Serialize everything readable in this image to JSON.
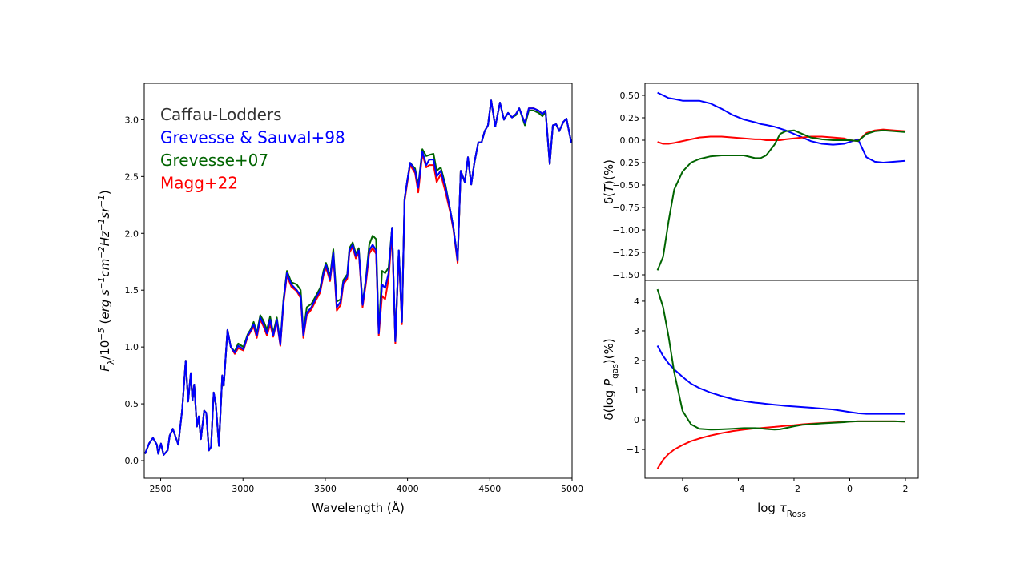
{
  "chart_data": [
    {
      "type": "line",
      "xlabel": "Wavelength (Å)",
      "ylabel_parts": [
        {
          "t": "F",
          "style": "italic"
        },
        {
          "t": "λ",
          "style": "sub"
        },
        {
          "t": "/10",
          "style": "normal"
        },
        {
          "t": "−5",
          "style": "sup"
        },
        {
          "t": "  (",
          "style": "normal"
        },
        {
          "t": "erg s",
          "style": "italic"
        },
        {
          "t": "−1",
          "style": "sup"
        },
        {
          "t": "cm",
          "style": "italic"
        },
        {
          "t": "−2",
          "style": "sup"
        },
        {
          "t": "Hz",
          "style": "italic"
        },
        {
          "t": "−1",
          "style": "sup"
        },
        {
          "t": "sr",
          "style": "italic"
        },
        {
          "t": "−1",
          "style": "sup"
        },
        {
          "t": ")",
          "style": "normal"
        }
      ],
      "xlim": [
        2400,
        5000
      ],
      "ylim": [
        -0.155,
        3.32
      ],
      "xticks": [
        2500,
        3000,
        3500,
        4000,
        4500,
        5000
      ],
      "yticks": [
        "0.0",
        "0.5",
        "1.0",
        "1.5",
        "2.0",
        "2.5",
        "3.0"
      ],
      "grid": false,
      "legend_position": "top-left",
      "x": [
        2405,
        2429,
        2453,
        2477,
        2485,
        2502,
        2518,
        2542,
        2555,
        2574,
        2607,
        2631,
        2652,
        2667,
        2683,
        2693,
        2704,
        2720,
        2731,
        2744,
        2764,
        2777,
        2793,
        2806,
        2822,
        2835,
        2854,
        2874,
        2883,
        2906,
        2926,
        2950,
        2971,
        3003,
        3028,
        3049,
        3065,
        3084,
        3105,
        3125,
        3146,
        3165,
        3184,
        3206,
        3227,
        3246,
        3267,
        3294,
        3327,
        3351,
        3367,
        3388,
        3416,
        3443,
        3469,
        3489,
        3505,
        3529,
        3549,
        3570,
        3594,
        3610,
        3634,
        3647,
        3667,
        3686,
        3704,
        3727,
        3748,
        3767,
        3788,
        3809,
        3825,
        3845,
        3864,
        3885,
        3906,
        3926,
        3947,
        3966,
        3982,
        3997,
        4016,
        4046,
        4065,
        4090,
        4114,
        4133,
        4158,
        4177,
        4202,
        4231,
        4260,
        4279,
        4304,
        4323,
        4348,
        4367,
        4387,
        4406,
        4430,
        4450,
        4469,
        4489,
        4508,
        4533,
        4562,
        4586,
        4611,
        4635,
        4659,
        4679,
        4713,
        4737,
        4766,
        4796,
        4820,
        4839,
        4864,
        4883,
        4903,
        4922,
        4947,
        4966,
        4995
      ],
      "series": [
        {
          "name": "Caffau-Lodders",
          "color": "#333333",
          "values": [
            0.06,
            0.15,
            0.2,
            0.14,
            0.06,
            0.15,
            0.05,
            0.09,
            0.22,
            0.28,
            0.14,
            0.45,
            0.88,
            0.52,
            0.77,
            0.53,
            0.67,
            0.3,
            0.39,
            0.19,
            0.44,
            0.42,
            0.09,
            0.12,
            0.6,
            0.5,
            0.13,
            0.75,
            0.66,
            1.15,
            1.0,
            0.95,
            1.01,
            0.98,
            1.1,
            1.15,
            1.2,
            1.1,
            1.26,
            1.2,
            1.12,
            1.24,
            1.1,
            1.24,
            1.02,
            1.4,
            1.65,
            1.55,
            1.5,
            1.45,
            1.1,
            1.3,
            1.35,
            1.43,
            1.5,
            1.65,
            1.72,
            1.6,
            1.83,
            1.35,
            1.4,
            1.57,
            1.62,
            1.85,
            1.9,
            1.8,
            1.85,
            1.37,
            1.6,
            1.85,
            1.9,
            1.85,
            1.12,
            1.55,
            1.52,
            1.65,
            2.05,
            1.05,
            1.85,
            1.22,
            2.3,
            2.45,
            2.62,
            2.55,
            2.4,
            2.72,
            2.6,
            2.65,
            2.65,
            2.5,
            2.55,
            2.4,
            2.2,
            2.05,
            1.76,
            2.55,
            2.45,
            2.67,
            2.43,
            2.62,
            2.8,
            2.8,
            2.9,
            2.95,
            3.17,
            2.94,
            3.15,
            3.0,
            3.06,
            3.02,
            3.05,
            3.1,
            2.97,
            3.1,
            3.1,
            3.08,
            3.05,
            3.08,
            2.61,
            2.95,
            2.96,
            2.9,
            2.98,
            3.01,
            2.8
          ]
        },
        {
          "name": "Magg+22",
          "color": "#ff0000",
          "values": [
            0.06,
            0.15,
            0.2,
            0.14,
            0.06,
            0.15,
            0.05,
            0.09,
            0.22,
            0.28,
            0.14,
            0.45,
            0.88,
            0.52,
            0.77,
            0.53,
            0.67,
            0.3,
            0.39,
            0.19,
            0.44,
            0.42,
            0.09,
            0.12,
            0.6,
            0.5,
            0.13,
            0.75,
            0.66,
            1.15,
            1.0,
            0.94,
            0.99,
            0.97,
            1.09,
            1.14,
            1.18,
            1.08,
            1.24,
            1.18,
            1.1,
            1.2,
            1.09,
            1.22,
            1.01,
            1.38,
            1.63,
            1.53,
            1.49,
            1.43,
            1.08,
            1.28,
            1.33,
            1.41,
            1.48,
            1.63,
            1.7,
            1.58,
            1.81,
            1.32,
            1.37,
            1.55,
            1.6,
            1.83,
            1.88,
            1.78,
            1.83,
            1.35,
            1.57,
            1.82,
            1.87,
            1.82,
            1.1,
            1.45,
            1.42,
            1.6,
            2.0,
            1.03,
            1.82,
            1.2,
            2.28,
            2.43,
            2.6,
            2.53,
            2.36,
            2.7,
            2.58,
            2.6,
            2.6,
            2.45,
            2.52,
            2.36,
            2.18,
            2.03,
            1.74,
            2.55,
            2.45,
            2.67,
            2.43,
            2.62,
            2.8,
            2.8,
            2.9,
            2.95,
            3.17,
            2.94,
            3.15,
            3.0,
            3.06,
            3.02,
            3.05,
            3.1,
            2.97,
            3.1,
            3.1,
            3.08,
            3.05,
            3.08,
            2.61,
            2.95,
            2.96,
            2.9,
            2.98,
            3.01,
            2.8
          ]
        },
        {
          "name": "Grevesse+07",
          "color": "#006400",
          "values": [
            0.06,
            0.15,
            0.2,
            0.14,
            0.06,
            0.15,
            0.05,
            0.09,
            0.22,
            0.28,
            0.14,
            0.45,
            0.88,
            0.52,
            0.77,
            0.53,
            0.67,
            0.3,
            0.39,
            0.19,
            0.44,
            0.42,
            0.09,
            0.12,
            0.6,
            0.5,
            0.13,
            0.75,
            0.66,
            1.15,
            1.0,
            0.96,
            1.03,
            1.0,
            1.11,
            1.16,
            1.22,
            1.12,
            1.28,
            1.23,
            1.15,
            1.27,
            1.12,
            1.26,
            1.04,
            1.42,
            1.67,
            1.57,
            1.55,
            1.5,
            1.13,
            1.35,
            1.38,
            1.45,
            1.52,
            1.67,
            1.74,
            1.62,
            1.86,
            1.4,
            1.42,
            1.59,
            1.64,
            1.87,
            1.92,
            1.82,
            1.87,
            1.38,
            1.62,
            1.9,
            1.98,
            1.95,
            1.13,
            1.67,
            1.65,
            1.7,
            2.05,
            1.05,
            1.85,
            1.22,
            2.3,
            2.45,
            2.62,
            2.57,
            2.42,
            2.74,
            2.68,
            2.69,
            2.7,
            2.55,
            2.58,
            2.42,
            2.2,
            2.05,
            1.76,
            2.55,
            2.45,
            2.67,
            2.43,
            2.62,
            2.8,
            2.8,
            2.9,
            2.95,
            3.17,
            2.94,
            3.15,
            3.0,
            3.06,
            3.02,
            3.04,
            3.1,
            2.95,
            3.08,
            3.08,
            3.06,
            3.03,
            3.07,
            2.61,
            2.95,
            2.96,
            2.9,
            2.98,
            3.01,
            2.8
          ]
        },
        {
          "name": "Grevesse & Sauval+98",
          "color": "#0000ff",
          "values": [
            0.06,
            0.15,
            0.2,
            0.14,
            0.06,
            0.15,
            0.05,
            0.09,
            0.22,
            0.28,
            0.14,
            0.45,
            0.88,
            0.52,
            0.77,
            0.53,
            0.67,
            0.3,
            0.39,
            0.19,
            0.44,
            0.42,
            0.09,
            0.12,
            0.6,
            0.5,
            0.13,
            0.75,
            0.66,
            1.15,
            1.0,
            0.95,
            1.01,
            0.98,
            1.1,
            1.15,
            1.2,
            1.1,
            1.26,
            1.2,
            1.12,
            1.24,
            1.1,
            1.24,
            1.02,
            1.4,
            1.65,
            1.55,
            1.5,
            1.45,
            1.1,
            1.3,
            1.35,
            1.43,
            1.5,
            1.65,
            1.72,
            1.6,
            1.83,
            1.35,
            1.4,
            1.57,
            1.62,
            1.85,
            1.9,
            1.8,
            1.85,
            1.37,
            1.6,
            1.85,
            1.9,
            1.85,
            1.12,
            1.55,
            1.52,
            1.65,
            2.05,
            1.05,
            1.85,
            1.22,
            2.3,
            2.45,
            2.62,
            2.55,
            2.4,
            2.72,
            2.6,
            2.65,
            2.65,
            2.5,
            2.55,
            2.4,
            2.2,
            2.05,
            1.76,
            2.55,
            2.45,
            2.67,
            2.43,
            2.62,
            2.8,
            2.8,
            2.9,
            2.95,
            3.17,
            2.94,
            3.15,
            3.0,
            3.06,
            3.02,
            3.05,
            3.1,
            2.97,
            3.1,
            3.1,
            3.08,
            3.05,
            3.08,
            2.61,
            2.95,
            2.96,
            2.9,
            2.98,
            3.01,
            2.8
          ]
        }
      ],
      "legend": [
        {
          "label": "Caffau-Lodders",
          "color": "#333333"
        },
        {
          "label": "Grevesse & Sauval+98",
          "color": "#0000ff"
        },
        {
          "label": "Grevesse+07",
          "color": "#006400"
        },
        {
          "label": "Magg+22",
          "color": "#ff0000"
        }
      ]
    },
    {
      "type": "line",
      "ylabel_parts": [
        {
          "t": "δ(",
          "style": "normal"
        },
        {
          "t": "T",
          "style": "italic"
        },
        {
          "t": ")(%)",
          "style": "normal"
        }
      ],
      "xlim": [
        -7.35,
        2.46
      ],
      "ylim": [
        -1.5625,
        0.634
      ],
      "yticks": [
        "0.50",
        "0.25",
        "0.00",
        "−0.25",
        "−0.50",
        "−0.75",
        "−1.00",
        "−1.25",
        "−1.50"
      ],
      "grid": false,
      "x": [
        -6.9,
        -6.7,
        -6.5,
        -6.3,
        -6.0,
        -5.7,
        -5.4,
        -5.0,
        -4.6,
        -4.2,
        -3.8,
        -3.4,
        -3.2,
        -3.0,
        -2.7,
        -2.5,
        -2.3,
        -2.0,
        -1.7,
        -1.4,
        -1.0,
        -0.6,
        -0.2,
        0.0,
        0.3,
        0.6,
        0.9,
        1.2,
        1.6,
        2.0
      ],
      "series": [
        {
          "color": "#0000ff",
          "values": [
            0.53,
            0.5,
            0.47,
            0.46,
            0.44,
            0.44,
            0.44,
            0.41,
            0.35,
            0.28,
            0.23,
            0.2,
            0.18,
            0.17,
            0.15,
            0.13,
            0.11,
            0.07,
            0.03,
            -0.01,
            -0.04,
            -0.05,
            -0.04,
            -0.02,
            0.01,
            -0.19,
            -0.24,
            -0.25,
            -0.24,
            -0.23
          ]
        },
        {
          "color": "#ff0000",
          "values": [
            -0.02,
            -0.04,
            -0.04,
            -0.03,
            -0.01,
            0.01,
            0.03,
            0.04,
            0.04,
            0.03,
            0.02,
            0.01,
            0.01,
            0.0,
            0.0,
            0.0,
            0.01,
            0.02,
            0.03,
            0.04,
            0.04,
            0.03,
            0.02,
            0.0,
            -0.01,
            0.08,
            0.11,
            0.12,
            0.11,
            0.1
          ]
        },
        {
          "color": "#006400",
          "values": [
            -1.45,
            -1.3,
            -0.9,
            -0.55,
            -0.35,
            -0.25,
            -0.21,
            -0.18,
            -0.17,
            -0.17,
            -0.17,
            -0.2,
            -0.2,
            -0.17,
            -0.05,
            0.07,
            0.1,
            0.11,
            0.07,
            0.03,
            0.01,
            0.0,
            0.0,
            0.0,
            -0.01,
            0.07,
            0.1,
            0.11,
            0.1,
            0.09
          ]
        }
      ]
    },
    {
      "type": "line",
      "xlabel_parts": [
        {
          "t": "log ",
          "style": "normal"
        },
        {
          "t": "τ",
          "style": "italic"
        },
        {
          "t": "Ross",
          "style": "sub"
        }
      ],
      "ylabel_parts": [
        {
          "t": "δ(log ",
          "style": "normal"
        },
        {
          "t": "P",
          "style": "italic"
        },
        {
          "t": "gas",
          "style": "sub"
        },
        {
          "t": ")(%)",
          "style": "normal"
        }
      ],
      "xlim": [
        -7.35,
        2.46
      ],
      "ylim": [
        -1.97,
        4.7
      ],
      "xticks": [
        "−6",
        "−4",
        "−2",
        "0",
        "2"
      ],
      "yticks": [
        "−1",
        "0",
        "1",
        "2",
        "3",
        "4"
      ],
      "grid": false,
      "x": [
        -6.9,
        -6.7,
        -6.5,
        -6.3,
        -6.0,
        -5.7,
        -5.4,
        -5.0,
        -4.6,
        -4.2,
        -3.8,
        -3.4,
        -3.2,
        -3.0,
        -2.7,
        -2.5,
        -2.3,
        -2.0,
        -1.7,
        -1.4,
        -1.0,
        -0.6,
        -0.2,
        0.0,
        0.3,
        0.6,
        0.9,
        1.2,
        1.6,
        2.0
      ],
      "series": [
        {
          "color": "#0000ff",
          "values": [
            2.5,
            2.15,
            1.9,
            1.7,
            1.45,
            1.22,
            1.07,
            0.92,
            0.8,
            0.7,
            0.63,
            0.58,
            0.56,
            0.54,
            0.51,
            0.49,
            0.47,
            0.45,
            0.43,
            0.41,
            0.38,
            0.35,
            0.29,
            0.26,
            0.22,
            0.2,
            0.2,
            0.2,
            0.2,
            0.2
          ]
        },
        {
          "color": "#ff0000",
          "values": [
            -1.65,
            -1.35,
            -1.15,
            -1.0,
            -0.85,
            -0.72,
            -0.63,
            -0.53,
            -0.45,
            -0.38,
            -0.33,
            -0.29,
            -0.28,
            -0.26,
            -0.24,
            -0.22,
            -0.2,
            -0.18,
            -0.15,
            -0.13,
            -0.11,
            -0.09,
            -0.07,
            -0.06,
            -0.05,
            -0.05,
            -0.05,
            -0.05,
            -0.05,
            -0.06
          ]
        },
        {
          "color": "#006400",
          "values": [
            4.4,
            3.8,
            2.8,
            1.6,
            0.3,
            -0.15,
            -0.3,
            -0.33,
            -0.32,
            -0.3,
            -0.28,
            -0.28,
            -0.29,
            -0.31,
            -0.33,
            -0.32,
            -0.28,
            -0.22,
            -0.17,
            -0.15,
            -0.12,
            -0.1,
            -0.08,
            -0.06,
            -0.05,
            -0.05,
            -0.05,
            -0.05,
            -0.05,
            -0.06
          ]
        }
      ]
    }
  ]
}
